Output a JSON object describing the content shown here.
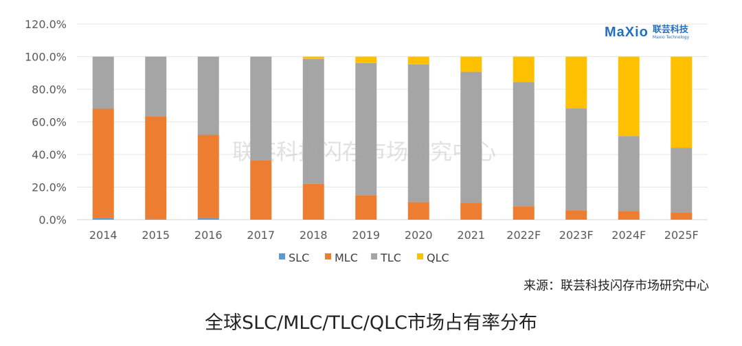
{
  "chart_data": {
    "type": "bar",
    "stacked": true,
    "categories": [
      "2014",
      "2015",
      "2016",
      "2017",
      "2018",
      "2019",
      "2020",
      "2021",
      "2022F",
      "2023F",
      "2024F",
      "2025F"
    ],
    "series": [
      {
        "name": "SLC",
        "color": "#5b9bd5",
        "values": [
          1,
          0.5,
          1,
          0,
          0,
          0,
          0,
          0,
          0,
          0,
          0,
          0
        ]
      },
      {
        "name": "MLC",
        "color": "#ed7d31",
        "values": [
          67,
          63,
          51,
          36.5,
          22,
          15,
          10.8,
          10.3,
          8.3,
          5.8,
          5.3,
          4.2
        ]
      },
      {
        "name": "TLC",
        "color": "#a5a5a5",
        "values": [
          32,
          36.5,
          48,
          63.5,
          76.6,
          81.1,
          84.4,
          80.4,
          76.2,
          62.4,
          46,
          39.8
        ]
      },
      {
        "name": "QLC",
        "color": "#ffc000",
        "values": [
          0,
          0,
          0,
          0,
          1.4,
          3.9,
          4.8,
          9.3,
          15.5,
          31.8,
          48.7,
          56
        ]
      }
    ],
    "yticks": [
      "0.0%",
      "20.0%",
      "40.0%",
      "60.0%",
      "80.0%",
      "100.0%",
      "120.0%"
    ],
    "ylim": [
      0,
      120
    ],
    "grid": true,
    "legend": "bottom",
    "title": "",
    "xlabel": "",
    "ylabel": ""
  },
  "watermark": "联芸科技闪存市场研究中心",
  "logo": {
    "mark": "MaXio",
    "cn": "联芸科技",
    "en": "Maxio Technology"
  },
  "source": "来源：联芸科技闪存市场研究中心",
  "caption": "全球SLC/MLC/TLC/QLC市场占有率分布"
}
